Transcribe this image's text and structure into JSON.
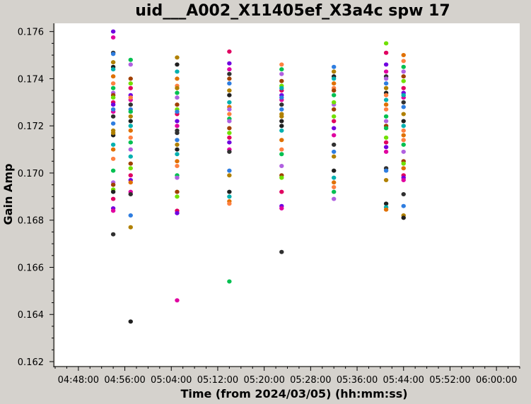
{
  "chart_data": {
    "type": "scatter",
    "title": "uid___A002_X11405ef_X3a4c spw 17",
    "xlabel": "Time (from 2024/03/05) (hh:mm:ss)",
    "ylabel": "Gain Amp",
    "x_unit": "seconds since 00:00",
    "xlim": [
      17040,
      21840
    ],
    "ylim": [
      0.162,
      0.1762
    ],
    "x_ticks": [
      {
        "value": 17280,
        "label": "04:48:00"
      },
      {
        "value": 17760,
        "label": "04:56:00"
      },
      {
        "value": 18240,
        "label": "05:04:00"
      },
      {
        "value": 18720,
        "label": "05:12:00"
      },
      {
        "value": 19200,
        "label": "05:20:00"
      },
      {
        "value": 19680,
        "label": "05:28:00"
      },
      {
        "value": 20160,
        "label": "05:36:00"
      },
      {
        "value": 20640,
        "label": "05:44:00"
      },
      {
        "value": 21120,
        "label": "05:52:00"
      },
      {
        "value": 21600,
        "label": "06:00:00"
      }
    ],
    "y_ticks": [
      {
        "value": 0.162,
        "label": "0.162"
      },
      {
        "value": 0.164,
        "label": "0.164"
      },
      {
        "value": 0.166,
        "label": "0.166"
      },
      {
        "value": 0.168,
        "label": "0.168"
      },
      {
        "value": 0.17,
        "label": "0.170"
      },
      {
        "value": 0.172,
        "label": "0.172"
      },
      {
        "value": 0.174,
        "label": "0.174"
      },
      {
        "value": 0.176,
        "label": "0.176"
      }
    ],
    "grid": false,
    "legend": "none",
    "colors": [
      "#7000e0",
      "#2e7de0",
      "#00b0b0",
      "#00c050",
      "#70e000",
      "#e000a0",
      "#b08000",
      "#e07000",
      "#b060e0",
      "#e00060",
      "#303030",
      "#202020",
      "#ff8040",
      "#a04000"
    ],
    "groups": [
      {
        "x": 17640,
        "values": [
          0.176,
          0.17575,
          0.1751,
          0.17505,
          0.1747,
          0.1745,
          0.1744,
          0.1741,
          0.1738,
          0.1736,
          0.1734,
          0.1733,
          0.1732,
          0.173,
          0.1729,
          0.1726,
          0.1724,
          0.1721,
          0.1718,
          0.1716,
          0.1712,
          0.171,
          0.1706,
          0.1701,
          0.1696,
          0.1695,
          0.1693,
          0.1689,
          0.1685,
          0.1684,
          0.1674,
          0.1727,
          0.1717,
          0.1692
        ]
      },
      {
        "x": 17820,
        "values": [
          0.1748,
          0.1746,
          0.174,
          0.1738,
          0.1736,
          0.1733,
          0.1731,
          0.1729,
          0.1727,
          0.1724,
          0.1722,
          0.172,
          0.1718,
          0.1715,
          0.1713,
          0.171,
          0.1704,
          0.1702,
          0.1699,
          0.1697,
          0.1692,
          0.1691,
          0.1682,
          0.1677,
          0.1637,
          0.1707,
          0.1696,
          0.1732,
          0.1726
        ]
      },
      {
        "x": 18300,
        "values": [
          0.1749,
          0.1746,
          0.1743,
          0.174,
          0.1737,
          0.1734,
          0.1732,
          0.1729,
          0.1727,
          0.1725,
          0.1722,
          0.172,
          0.1717,
          0.1714,
          0.1712,
          0.171,
          0.1708,
          0.1705,
          0.1703,
          0.1699,
          0.1698,
          0.1692,
          0.169,
          0.1684,
          0.1683,
          0.1646,
          0.1718,
          0.1726,
          0.1736
        ]
      },
      {
        "x": 18840,
        "values": [
          0.17515,
          0.17465,
          0.1744,
          0.1742,
          0.1738,
          0.1735,
          0.1733,
          0.173,
          0.1728,
          0.1725,
          0.1723,
          0.1722,
          0.1719,
          0.1717,
          0.1715,
          0.1713,
          0.171,
          0.1709,
          0.1701,
          0.1699,
          0.1692,
          0.169,
          0.1688,
          0.1687,
          0.1654,
          0.1727,
          0.174
        ]
      },
      {
        "x": 19380,
        "values": [
          0.1746,
          0.1744,
          0.1742,
          0.1739,
          0.1737,
          0.1735,
          0.1733,
          0.1731,
          0.1729,
          0.1727,
          0.1724,
          0.1722,
          0.1718,
          0.1714,
          0.171,
          0.1708,
          0.1703,
          0.1699,
          0.1698,
          0.1692,
          0.1686,
          0.1685,
          0.16665,
          0.1732,
          0.1725,
          0.172,
          0.1736
        ]
      },
      {
        "x": 19920,
        "values": [
          0.1745,
          0.1743,
          0.1741,
          0.174,
          0.1738,
          0.1736,
          0.1733,
          0.1729,
          0.1727,
          0.1724,
          0.1722,
          0.1719,
          0.1716,
          0.1712,
          0.1709,
          0.1707,
          0.1701,
          0.1698,
          0.1696,
          0.1694,
          0.1692,
          0.1689,
          0.1735,
          0.173
        ]
      },
      {
        "x": 20460,
        "values": [
          0.1755,
          0.1751,
          0.1746,
          0.1743,
          0.1741,
          0.1738,
          0.1736,
          0.1734,
          0.1731,
          0.1729,
          0.1727,
          0.1724,
          0.1722,
          0.172,
          0.1715,
          0.1713,
          0.1711,
          0.1709,
          0.1702,
          0.1701,
          0.1697,
          0.1687,
          0.16855,
          0.16845,
          0.1733,
          0.1719,
          0.174
        ]
      },
      {
        "x": 20640,
        "values": [
          0.175,
          0.17475,
          0.1745,
          0.1743,
          0.1741,
          0.1739,
          0.1736,
          0.1734,
          0.1732,
          0.173,
          0.1728,
          0.1725,
          0.1722,
          0.172,
          0.1716,
          0.1714,
          0.1712,
          0.1709,
          0.1705,
          0.1704,
          0.1699,
          0.1698,
          0.1697,
          0.1691,
          0.1686,
          0.1682,
          0.1681,
          0.1733,
          0.1702,
          0.1718
        ]
      }
    ]
  }
}
